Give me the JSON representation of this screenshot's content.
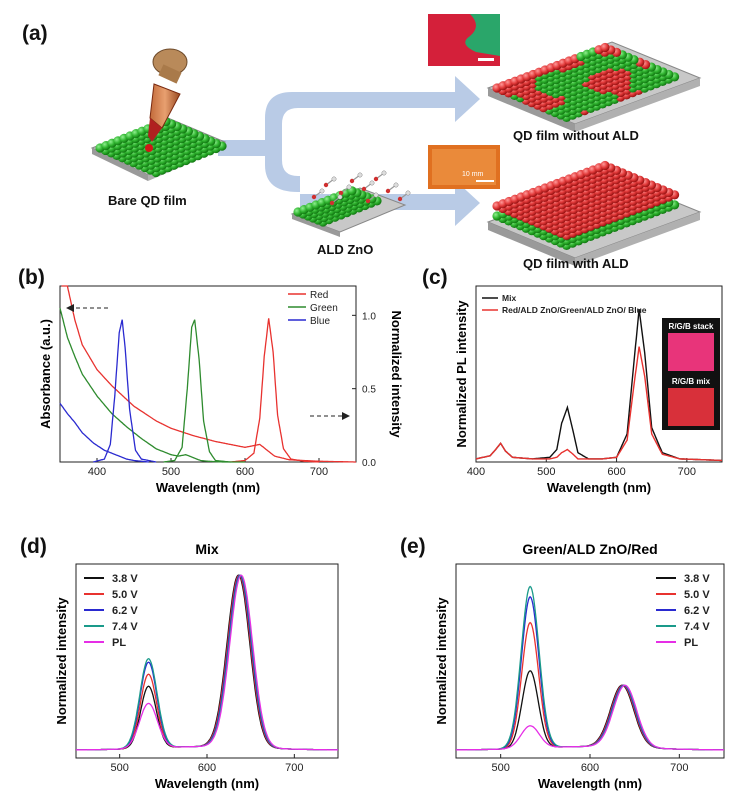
{
  "panel_a": {
    "label": "(a)",
    "bare_caption": "Bare QD film",
    "ald_caption": "ALD ZnO",
    "without_caption": "QD film without ALD",
    "with_caption": "QD film with ALD",
    "scale_bar": "10 mm"
  },
  "panel_b": {
    "label": "(b)"
  },
  "panel_c": {
    "label": "(c)",
    "inset_top": "R/G/B stack",
    "inset_bottom": "R/G/B mix"
  },
  "panel_d": {
    "label": "(d)"
  },
  "panel_e": {
    "label": "(e)"
  },
  "colors": {
    "red": "#e8322f",
    "green": "#2e8b2e",
    "blue": "#2a2ad0",
    "teal": "#1a9a8a",
    "magenta": "#e62ee6",
    "black": "#111111"
  },
  "chart_data": [
    {
      "id": "b",
      "type": "line",
      "title": "",
      "xlabel": "Wavelength (nm)",
      "ylabel": "Absorbance (a.u.)",
      "ylabel_right": "Normalized intensity",
      "xlim": [
        350,
        750
      ],
      "xticks": [
        400,
        500,
        600,
        700
      ],
      "ylim_right": [
        0,
        1.2
      ],
      "yticks_right": [
        "0.0",
        "0.5",
        "1.0"
      ],
      "legend": [
        "Red",
        "Green",
        "Blue"
      ],
      "legend_position": "top-right",
      "series": [
        {
          "name": "Red",
          "kind": "absorbance",
          "x": [
            352,
            360,
            370,
            380,
            400,
            420,
            450,
            480,
            500,
            530,
            560,
            590,
            600,
            610,
            620,
            630,
            640,
            660,
            700,
            750
          ],
          "y": [
            1.2,
            1.2,
            0.97,
            0.8,
            0.63,
            0.52,
            0.38,
            0.28,
            0.23,
            0.18,
            0.14,
            0.11,
            0.1,
            0.11,
            0.12,
            0.08,
            0.04,
            0.015,
            0.005,
            0.0
          ]
        },
        {
          "name": "Red",
          "kind": "pl",
          "x": [
            580,
            600,
            612,
            620,
            626,
            632,
            638,
            644,
            652,
            662,
            680,
            700
          ],
          "y": [
            0,
            0.01,
            0.06,
            0.3,
            0.72,
            0.98,
            0.75,
            0.32,
            0.09,
            0.02,
            0.005,
            0
          ]
        },
        {
          "name": "Green",
          "kind": "absorbance",
          "x": [
            350,
            360,
            370,
            380,
            400,
            420,
            440,
            460,
            480,
            500,
            510,
            520,
            530,
            540,
            550,
            570,
            600
          ],
          "y": [
            1.05,
            0.85,
            0.72,
            0.6,
            0.45,
            0.33,
            0.24,
            0.16,
            0.09,
            0.05,
            0.04,
            0.05,
            0.03,
            0.01,
            0.005,
            0.0,
            0.0
          ]
        },
        {
          "name": "Green",
          "kind": "pl",
          "x": [
            490,
            505,
            515,
            522,
            528,
            532,
            538,
            544,
            552,
            560,
            580
          ],
          "y": [
            0,
            0.01,
            0.1,
            0.5,
            0.92,
            0.97,
            0.7,
            0.28,
            0.07,
            0.01,
            0
          ]
        },
        {
          "name": "Blue",
          "kind": "absorbance",
          "x": [
            350,
            360,
            370,
            380,
            395,
            410,
            420,
            430,
            440,
            450,
            470
          ],
          "y": [
            0.4,
            0.33,
            0.27,
            0.2,
            0.13,
            0.08,
            0.06,
            0.04,
            0.02,
            0.01,
            0.0
          ]
        },
        {
          "name": "Blue",
          "kind": "pl",
          "x": [
            395,
            410,
            418,
            424,
            430,
            434,
            438,
            444,
            452,
            460,
            480
          ],
          "y": [
            0,
            0.02,
            0.12,
            0.45,
            0.88,
            0.97,
            0.78,
            0.36,
            0.08,
            0.02,
            0
          ]
        }
      ]
    },
    {
      "id": "c",
      "type": "line",
      "title": "",
      "xlabel": "Wavelength (nm)",
      "ylabel": "Normalized PL intensity",
      "xlim": [
        400,
        750
      ],
      "xticks": [
        400,
        500,
        600,
        700
      ],
      "legend": [
        "Mix",
        "Red/ALD ZnO/Green/ALD ZnO/ Blue"
      ],
      "legend_position": "top-left",
      "series": [
        {
          "name": "Mix",
          "x": [
            400,
            420,
            428,
            435,
            442,
            452,
            480,
            505,
            515,
            522,
            530,
            538,
            545,
            560,
            580,
            600,
            615,
            625,
            632,
            640,
            650,
            665,
            690,
            750
          ],
          "y": [
            0.02,
            0.04,
            0.08,
            0.12,
            0.07,
            0.03,
            0.02,
            0.03,
            0.08,
            0.25,
            0.35,
            0.2,
            0.06,
            0.02,
            0.02,
            0.03,
            0.18,
            0.65,
            0.98,
            0.7,
            0.22,
            0.06,
            0.02,
            0.01
          ]
        },
        {
          "name": "Red/ALD ZnO/Green/ALD ZnO/ Blue",
          "x": [
            400,
            420,
            428,
            435,
            442,
            452,
            480,
            505,
            515,
            522,
            530,
            538,
            545,
            560,
            580,
            600,
            615,
            625,
            632,
            640,
            650,
            665,
            690,
            750
          ],
          "y": [
            0.02,
            0.04,
            0.08,
            0.12,
            0.07,
            0.03,
            0.02,
            0.02,
            0.03,
            0.06,
            0.08,
            0.05,
            0.02,
            0.02,
            0.02,
            0.03,
            0.14,
            0.5,
            0.74,
            0.55,
            0.18,
            0.05,
            0.02,
            0.01
          ]
        }
      ]
    },
    {
      "id": "d",
      "type": "line",
      "title": "Mix",
      "xlabel": "Wavelength (nm)",
      "ylabel": "Normalized intensity",
      "xlim": [
        450,
        750
      ],
      "xticks": [
        500,
        600,
        700
      ],
      "legend": [
        "3.8 V",
        "5.0 V",
        "6.2 V",
        "7.4 V",
        "PL"
      ],
      "legend_position": "top-left",
      "series": [
        {
          "name": "3.8 V",
          "peak_g": 0.36,
          "peak_r": 1.0
        },
        {
          "name": "5.0 V",
          "peak_g": 0.43,
          "peak_r": 1.0
        },
        {
          "name": "6.2 V",
          "peak_g": 0.5,
          "peak_r": 1.0
        },
        {
          "name": "7.4 V",
          "peak_g": 0.52,
          "peak_r": 1.0
        },
        {
          "name": "PL",
          "peak_g": 0.26,
          "peak_r": 1.0
        }
      ]
    },
    {
      "id": "e",
      "type": "line",
      "title": "Green/ALD ZnO/Red",
      "xlabel": "Wavelength (nm)",
      "ylabel": "Normalized intensity",
      "xlim": [
        450,
        750
      ],
      "xticks": [
        500,
        600,
        700
      ],
      "legend": [
        "3.8 V",
        "5.0 V",
        "6.2 V",
        "7.4 V",
        "PL"
      ],
      "legend_position": "top-right",
      "series": [
        {
          "name": "3.8 V",
          "peak_g": 0.45,
          "peak_r": 0.36
        },
        {
          "name": "5.0 V",
          "peak_g": 0.73,
          "peak_r": 0.36
        },
        {
          "name": "6.2 V",
          "peak_g": 0.88,
          "peak_r": 0.36
        },
        {
          "name": "7.4 V",
          "peak_g": 0.94,
          "peak_r": 0.36
        },
        {
          "name": "PL",
          "peak_g": 0.13,
          "peak_r": 0.36
        }
      ]
    }
  ]
}
